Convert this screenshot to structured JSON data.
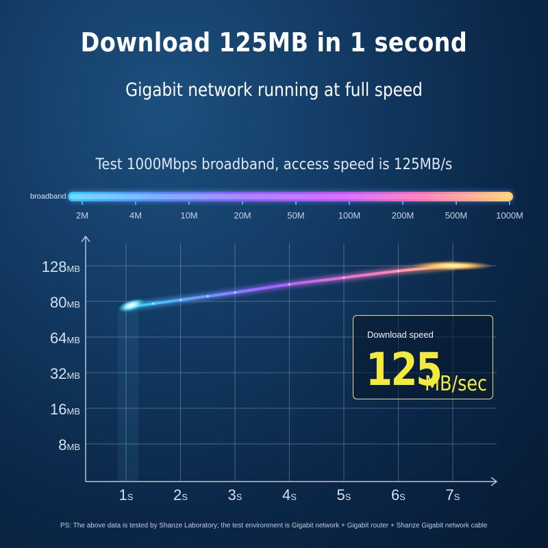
{
  "headline": "Download 125MB in 1 second",
  "subheadline": "Gigabit network running at full speed",
  "test_line": "Test 1000Mbps broadband, access speed is 125MB/s",
  "broadband": {
    "label": "broadband",
    "ticks": [
      "2M",
      "4M",
      "10M",
      "20M",
      "50M",
      "100M",
      "200M",
      "500M",
      "1000M"
    ]
  },
  "info_box": {
    "label": "Download speed",
    "value": "125",
    "unit": "MB/sec"
  },
  "footnote": "PS: The above data is tested by Shanze Laboratory; the test environment is Gigabit network + Gigabit router + Shanze Gigabit network cable",
  "colors": {
    "accent_yellow": "#f4ea3e",
    "curve_start": "#2fd6ff",
    "curve_mid": "#a560ff",
    "curve_end": "#ffd36a"
  },
  "chart_data": {
    "type": "line",
    "title": "",
    "xlabel": "",
    "ylabel": "",
    "x_ticks": [
      {
        "num": "1",
        "unit": "S"
      },
      {
        "num": "2",
        "unit": "S"
      },
      {
        "num": "3",
        "unit": "S"
      },
      {
        "num": "4",
        "unit": "S"
      },
      {
        "num": "5",
        "unit": "S"
      },
      {
        "num": "6",
        "unit": "S"
      },
      {
        "num": "7",
        "unit": "S"
      }
    ],
    "y_ticks": [
      {
        "num": "8",
        "unit": "MB"
      },
      {
        "num": "16",
        "unit": "MB"
      },
      {
        "num": "32",
        "unit": "MB"
      },
      {
        "num": "64",
        "unit": "MB"
      },
      {
        "num": "80",
        "unit": "MB"
      },
      {
        "num": "128",
        "unit": "MB"
      }
    ],
    "series": [
      {
        "x": [
          1,
          1.5,
          2,
          2.5,
          3,
          4,
          5,
          6,
          7
        ],
        "y": [
          72,
          77,
          82,
          87,
          92,
          103,
          112,
          121,
          128
        ]
      }
    ],
    "grid": true
  }
}
